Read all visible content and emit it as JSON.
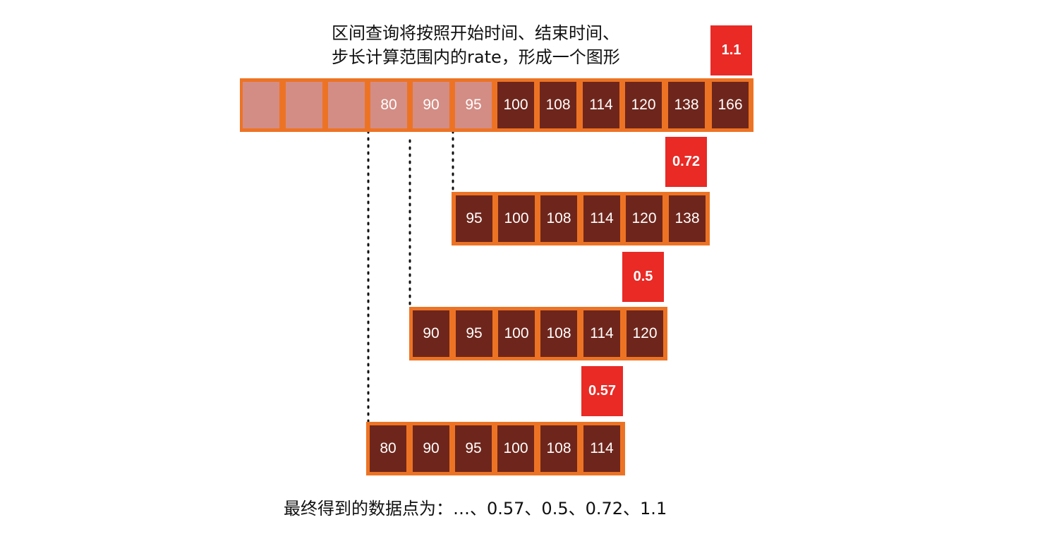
{
  "caption": {
    "line1": "区间查询将按照开始时间、结束时间、",
    "line2": "步长计算范围内的rate，形成一个图形"
  },
  "footer": "最终得到的数据点为：…、0.57、0.5、0.72、1.1",
  "rows": [
    {
      "cells": [
        "",
        "",
        "",
        "80",
        "90",
        "95",
        "100",
        "108",
        "114",
        "120",
        "138",
        "166"
      ],
      "faded_count": 6,
      "rate": "1.1"
    },
    {
      "cells": [
        "95",
        "100",
        "108",
        "114",
        "120",
        "138"
      ],
      "faded_count": 0,
      "rate": "0.72"
    },
    {
      "cells": [
        "90",
        "95",
        "100",
        "108",
        "114",
        "120"
      ],
      "faded_count": 0,
      "rate": "0.5"
    },
    {
      "cells": [
        "80",
        "90",
        "95",
        "100",
        "108",
        "114"
      ],
      "faded_count": 0,
      "rate": "0.57"
    }
  ],
  "colors": {
    "border": "#ed7324",
    "cell_dark": "#6e261c",
    "cell_faded": "#d38d85",
    "rate_box": "#e92a25"
  }
}
